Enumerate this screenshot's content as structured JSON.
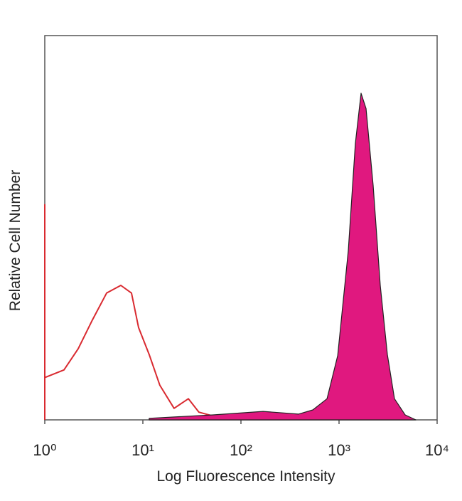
{
  "chart_data": {
    "type": "line",
    "xlabel": "Log Fluorescence Intensity",
    "ylabel": "Relative Cell Number",
    "xscale": "log",
    "xlim": [
      1,
      10000
    ],
    "xticks": [
      {
        "value": 1,
        "label": "10⁰"
      },
      {
        "value": 10,
        "label": "10¹"
      },
      {
        "value": 100,
        "label": "10²"
      },
      {
        "value": 1000,
        "label": "10³"
      },
      {
        "value": 10000,
        "label": "10⁴"
      }
    ],
    "ylim": [
      0,
      100
    ],
    "series": [
      {
        "color": "#d92a30",
        "filled": false,
        "x": [
          1,
          1,
          1,
          1.57,
          2.19,
          3.06,
          4.27,
          5.96,
          7.66,
          9.05,
          11.6,
          14.9,
          20.8,
          29.1,
          37.3,
          52.1,
          72.8
        ],
        "values": [
          0,
          56,
          11,
          13,
          18.5,
          26,
          33,
          35,
          33,
          24,
          17,
          9,
          3,
          5.5,
          2,
          1,
          0.4
        ]
      },
      {
        "color": "#e0187f",
        "filled": true,
        "x": [
          11.6,
          52.1,
          168,
          386,
          540,
          754,
          968,
          1242,
          1468,
          1678,
          1884,
          2228,
          2630,
          3112,
          3673,
          4720,
          6067
        ],
        "values": [
          0.4,
          1.3,
          2.2,
          1.5,
          2.6,
          5.5,
          16.7,
          44,
          72,
          85,
          81,
          61,
          35,
          17,
          5.5,
          1.3,
          0
        ]
      }
    ]
  }
}
